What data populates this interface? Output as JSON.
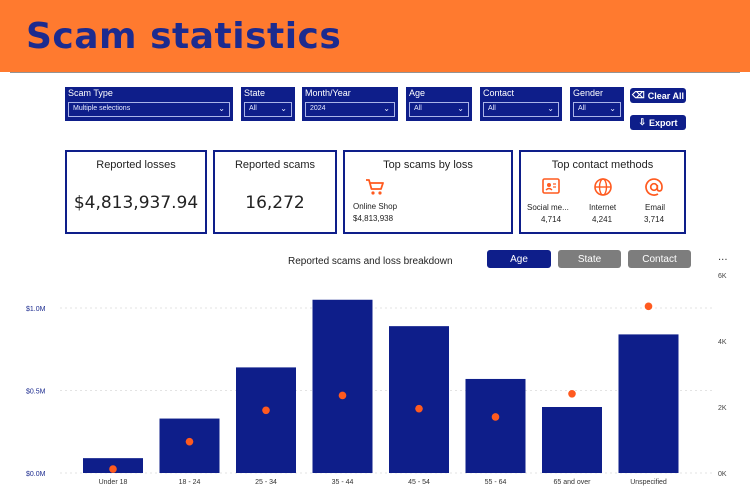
{
  "header": {
    "title": "Scam statistics"
  },
  "filters": [
    {
      "label": "Scam Type",
      "value": "Multiple selections"
    },
    {
      "label": "State",
      "value": "All"
    },
    {
      "label": "Month/Year",
      "value": "2024"
    },
    {
      "label": "Age",
      "value": "All"
    },
    {
      "label": "Contact",
      "value": "All"
    },
    {
      "label": "Gender",
      "value": "All"
    }
  ],
  "buttons": {
    "clear_all": "Clear All",
    "export": "Export"
  },
  "cards": {
    "losses": {
      "title": "Reported losses",
      "value": "$4,813,937.94"
    },
    "scams": {
      "title": "Reported scams",
      "value": "16,272"
    },
    "top_scams": {
      "title": "Top scams by loss",
      "item": "Online Shop",
      "amount": "$4,813,938"
    },
    "top_contact": {
      "title": "Top contact methods",
      "items": [
        {
          "label": "Social me...",
          "value": "4,714",
          "icon": "social-media-icon"
        },
        {
          "label": "Internet",
          "value": "4,241",
          "icon": "globe-icon"
        },
        {
          "label": "Email",
          "value": "3,714",
          "icon": "at-sign-icon"
        }
      ]
    }
  },
  "chart_section": {
    "title": "Reported scams and loss breakdown",
    "toggles": [
      "Age",
      "State",
      "Contact"
    ],
    "active_toggle": "Age",
    "more": "..."
  },
  "colors": {
    "accent": "#ff7a2f",
    "navy": "#0e1e8a",
    "dot": "#ff5a1f",
    "toggle_inactive": "#7d7d7d"
  },
  "chart_data": {
    "type": "bar",
    "categories": [
      "Under 18",
      "18 - 24",
      "25 - 34",
      "35 - 44",
      "45 - 54",
      "55 - 64",
      "65 and over",
      "Unspecified"
    ],
    "series": [
      {
        "values": [
          90000,
          330000,
          640000,
          1050000,
          890000,
          570000,
          400000,
          840000
        ]
      },
      {
        "values": [
          120,
          950,
          1900,
          2350,
          1950,
          1700,
          2400,
          5050
        ]
      }
    ],
    "y_left": {
      "ticks": [
        "$0.0M",
        "$0.5M",
        "$1.0M"
      ],
      "range": [
        0,
        1250000
      ]
    },
    "y_right": {
      "ticks": [
        "0K",
        "2K",
        "4K",
        "6K"
      ],
      "range": [
        0,
        6000
      ]
    },
    "grid": true
  }
}
